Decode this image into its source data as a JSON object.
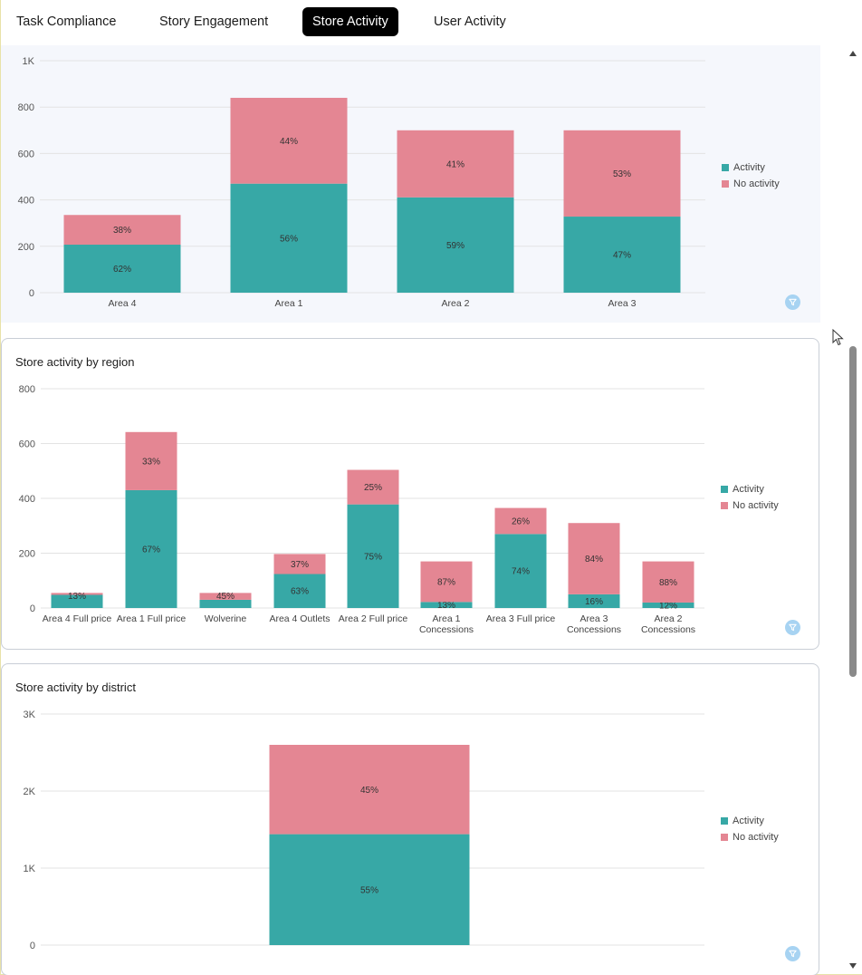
{
  "tabs": [
    {
      "label": "Task Compliance",
      "active": false
    },
    {
      "label": "Story Engagement",
      "active": false
    },
    {
      "label": "Store Activity",
      "active": true
    },
    {
      "label": "User Activity",
      "active": false
    }
  ],
  "legend": {
    "activity": "Activity",
    "no_activity": "No activity"
  },
  "colors": {
    "activity": "#37a8a6",
    "no_activity": "#e48693",
    "grid": "#e3e3e3",
    "filter": "#a7d3f2"
  },
  "icons": {
    "filter": "filter-icon",
    "cursor": "mouse-cursor-icon",
    "scroll_up": "chevron-up-icon",
    "scroll_down": "chevron-down-icon"
  },
  "charts": [
    {
      "title": "",
      "chart_data": {
        "type": "bar",
        "stacked": true,
        "ylim": [
          0,
          1000
        ],
        "yticks": [
          0,
          200,
          400,
          600,
          800,
          1000
        ],
        "yticklabels": [
          "0",
          "200",
          "400",
          "600",
          "800",
          "1K"
        ],
        "grid": true,
        "legend_position": "right",
        "categories": [
          "Area 4",
          "Area 1",
          "Area 2",
          "Area 3"
        ],
        "series": [
          {
            "name": "Activity",
            "values": [
              207,
              470,
              411,
              328
            ],
            "labels": [
              "62%",
              "56%",
              "59%",
              "47%"
            ]
          },
          {
            "name": "No activity",
            "values": [
              128,
              370,
              289,
              372
            ],
            "labels": [
              "38%",
              "44%",
              "41%",
              "53%"
            ]
          }
        ]
      }
    },
    {
      "title": "Store activity by region",
      "chart_data": {
        "type": "bar",
        "stacked": true,
        "ylim": [
          0,
          800
        ],
        "yticks": [
          0,
          200,
          400,
          600,
          800
        ],
        "yticklabels": [
          "0",
          "200",
          "400",
          "600",
          "800"
        ],
        "grid": true,
        "legend_position": "right",
        "categories": [
          "Area 4 Full price",
          "Area 1 Full price",
          "Wolverine",
          "Area 4 Outlets",
          "Area 2 Full price",
          "Area 1 Concessions",
          "Area 3 Full price",
          "Area 3 Concessions",
          "Area 2 Concessions"
        ],
        "series": [
          {
            "name": "Activity",
            "values": [
              48,
              430,
              30,
              124,
              378,
              22,
              270,
              50,
              20
            ],
            "labels": [
              "",
              "67%",
              "",
              "63%",
              "75%",
              "13%",
              "74%",
              "16%",
              "12%"
            ]
          },
          {
            "name": "No activity",
            "values": [
              7,
              212,
              25,
              73,
              126,
              148,
              95,
              260,
              150
            ],
            "labels": [
              "13%",
              "33%",
              "45%",
              "37%",
              "25%",
              "87%",
              "26%",
              "84%",
              "88%"
            ]
          }
        ]
      }
    },
    {
      "title": "Store activity by district",
      "chart_data": {
        "type": "bar",
        "stacked": true,
        "ylim": [
          0,
          3000
        ],
        "yticks": [
          0,
          1000,
          2000,
          3000
        ],
        "yticklabels": [
          "0",
          "1K",
          "2K",
          "3K"
        ],
        "grid": true,
        "legend_position": "right",
        "categories": [
          ""
        ],
        "series": [
          {
            "name": "Activity",
            "values": [
              1440
            ],
            "labels": [
              "55%"
            ]
          },
          {
            "name": "No activity",
            "values": [
              1160
            ],
            "labels": [
              "45%"
            ]
          }
        ]
      }
    }
  ]
}
